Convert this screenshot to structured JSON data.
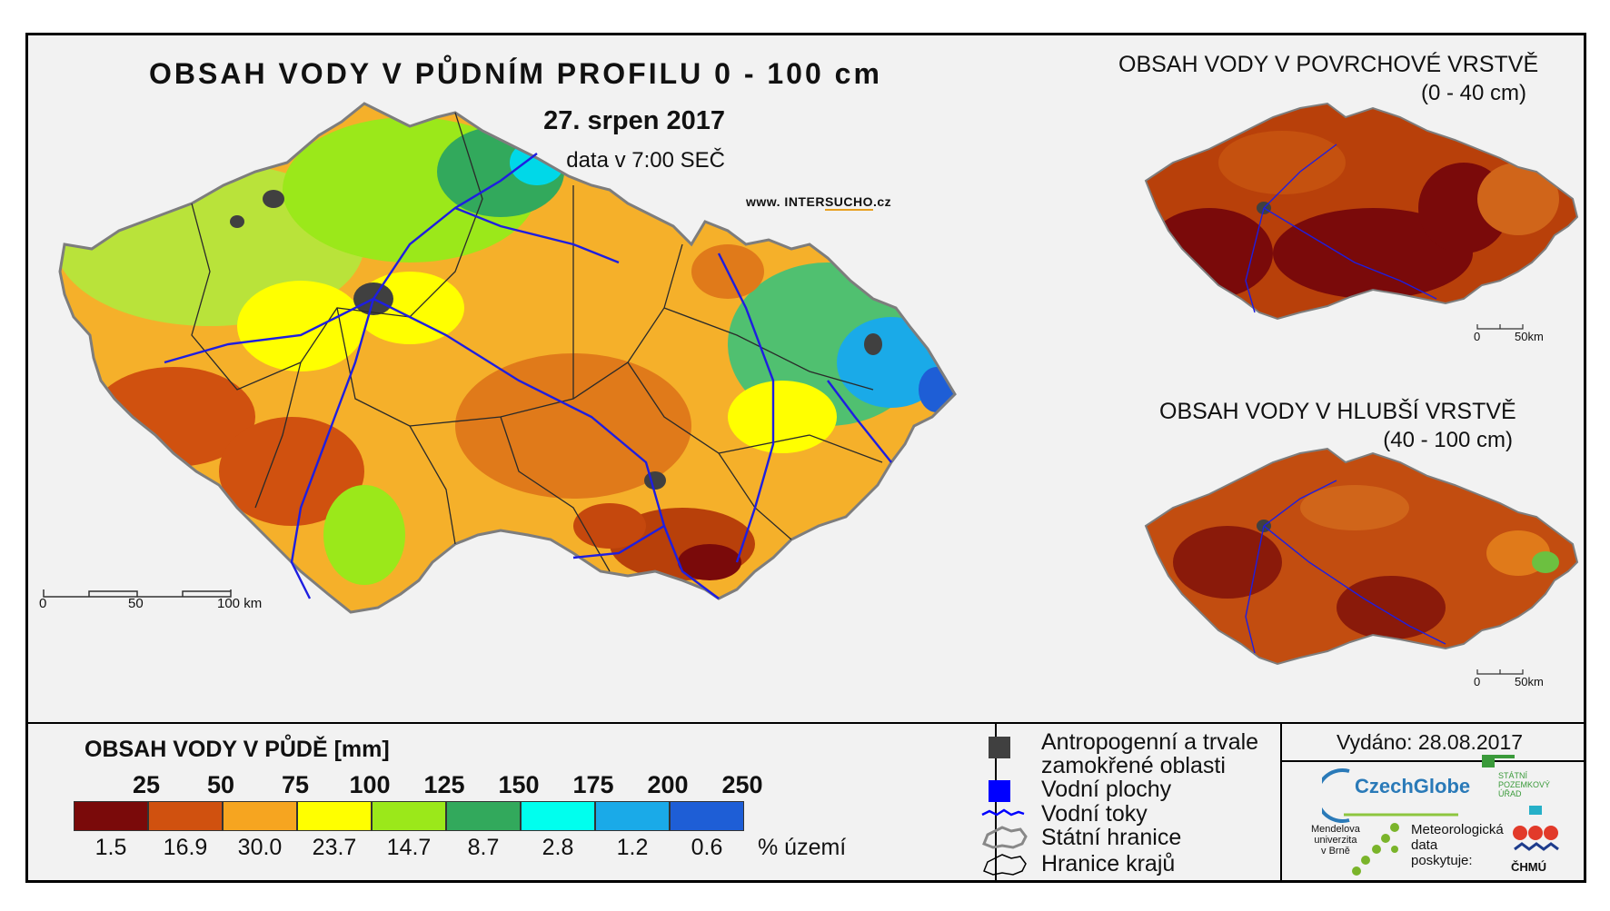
{
  "main_map": {
    "title": "OBSAH VODY V PŮDNÍM PROFILU 0 - 100 cm",
    "date": "27. srpen 2017",
    "time": "data v 7:00 SEČ",
    "web_prefix": "www. INTER",
    "web_highlight": "SUCHO",
    "web_suffix": ".cz",
    "scale_labels": [
      "0",
      "50",
      "100 km"
    ]
  },
  "surface_map": {
    "title": "OBSAH VODY V POVRCHOVÉ VRSTVĚ",
    "subtitle": "(0 - 40 cm)",
    "scale_labels": [
      "0",
      "50km"
    ]
  },
  "deep_map": {
    "title": "OBSAH VODY V HLUBŠÍ VRSTVĚ",
    "subtitle": "(40 - 100 cm)",
    "scale_labels": [
      "0",
      "50km"
    ]
  },
  "legend": {
    "title": "OBSAH VODY V PŮDĚ [mm]",
    "thresholds": [
      "25",
      "50",
      "75",
      "100",
      "125",
      "150",
      "175",
      "200",
      "250"
    ],
    "colors": [
      "#7a0a0a",
      "#d0510f",
      "#f6a520",
      "#ffff00",
      "#9be81a",
      "#32a95c",
      "#00ffee",
      "#1aaae8",
      "#1e5ed6"
    ],
    "percent_territory": [
      "1.5",
      "16.9",
      "30.0",
      "23.7",
      "14.7",
      "8.7",
      "2.8",
      "1.2",
      "0.6"
    ],
    "percent_label": "% území"
  },
  "symbols": {
    "anthropogenic": "Antropogenní a trvale",
    "anthropogenic_2": "zamokřené oblasti",
    "water_bodies": "Vodní plochy",
    "rivers": "Vodní toky",
    "state_border": "Státní hranice",
    "region_border": "Hranice krajů",
    "anthropogenic_color": "#404040",
    "water_color": "#0000ff"
  },
  "footer": {
    "issued": "Vydáno: 28.08.2017",
    "czechglobe": "CzechGlobe",
    "spu_1": "STÁTNÍ",
    "spu_2": "POZEMKOVÝ",
    "spu_3": "ÚŘAD",
    "mendel_1": "Mendelova",
    "mendel_2": "univerzita",
    "mendel_3": "v Brně",
    "meteo_1": "Meteorologická",
    "meteo_2": "data",
    "meteo_3": "poskytuje:",
    "chmu": "ČHMÚ"
  }
}
